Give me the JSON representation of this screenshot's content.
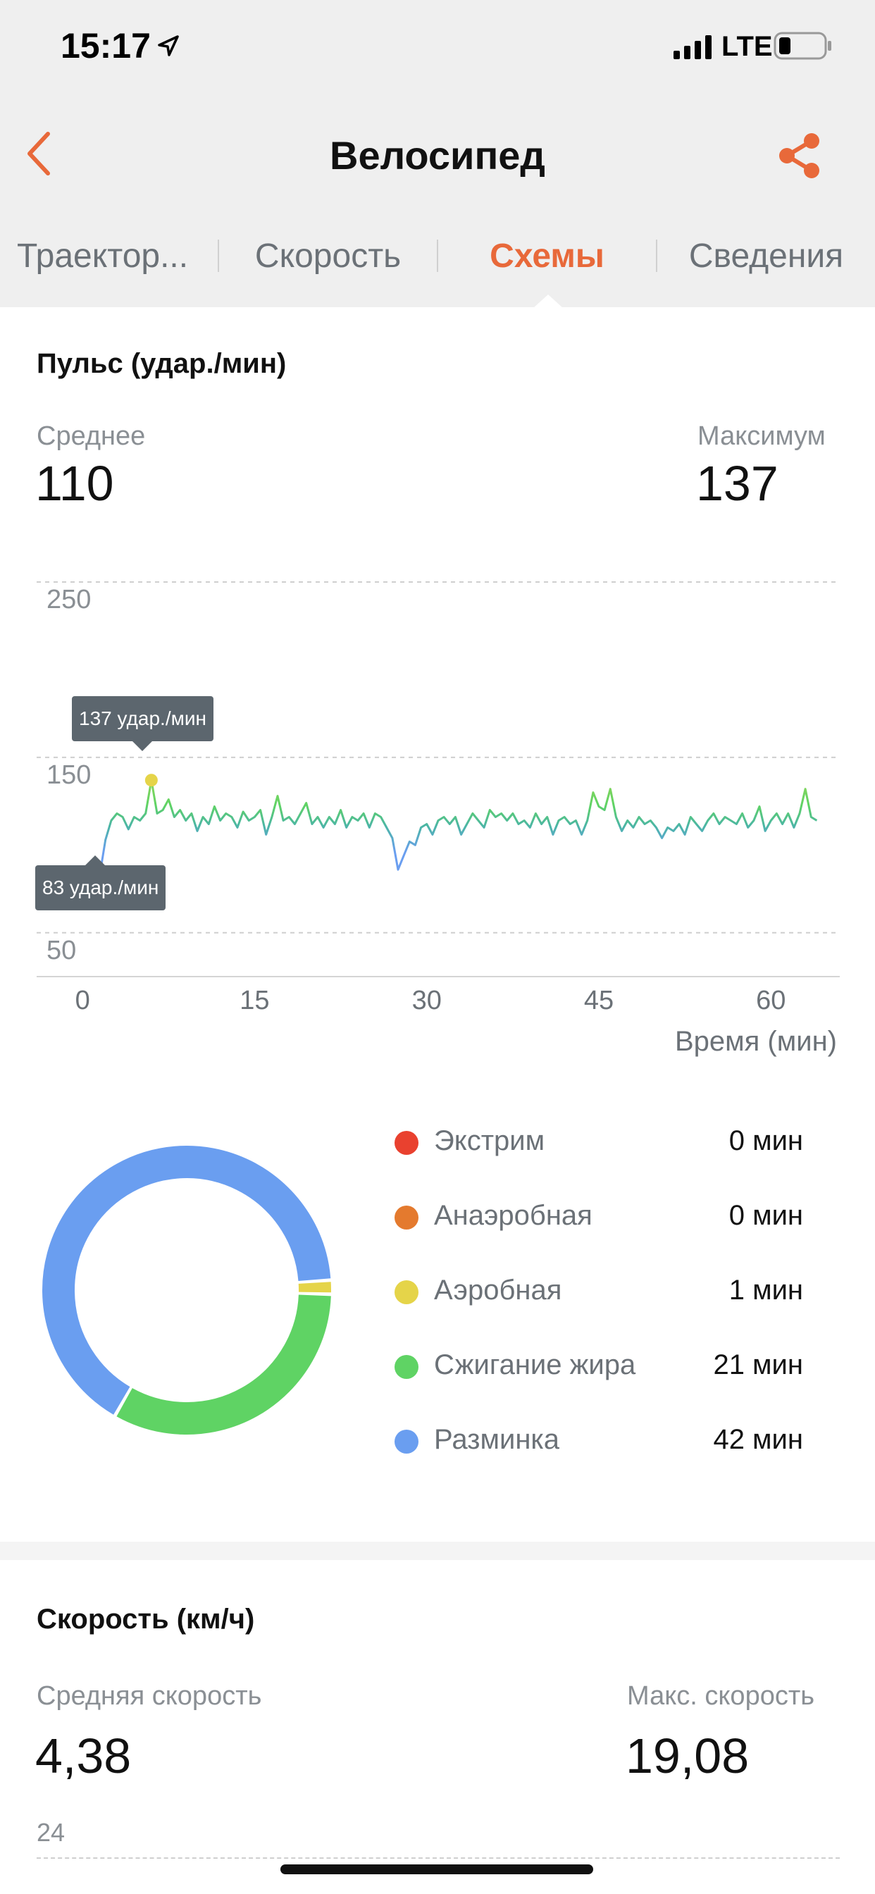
{
  "status_bar": {
    "time": "15:17",
    "network": "LTE"
  },
  "nav": {
    "title": "Велосипед"
  },
  "tabs": [
    {
      "label": "Траектор..."
    },
    {
      "label": "Скорость"
    },
    {
      "label": "Схемы"
    },
    {
      "label": "Сведения"
    }
  ],
  "heart_rate": {
    "title": "Пульс (удар./мин)",
    "avg_label": "Среднее",
    "avg_value": "110",
    "max_label": "Максимум",
    "max_value": "137",
    "max_tooltip": "137 удар./мин",
    "min_tooltip": "83 удар./мин",
    "x_axis_label": "Время (мин)"
  },
  "chart_data": {
    "type": "line",
    "title": "Пульс (удар./мин)",
    "xlabel": "Время (мин)",
    "ylabel": "",
    "y_ticks": [
      50,
      150,
      250
    ],
    "x_ticks": [
      0,
      15,
      30,
      45,
      60
    ],
    "xlim": [
      -4,
      66
    ],
    "ylim": [
      25,
      250
    ],
    "grid": true,
    "series": [
      {
        "points": [
          [
            1.5,
            83
          ],
          [
            2.0,
            103
          ],
          [
            2.5,
            114
          ],
          [
            3.0,
            118
          ],
          [
            3.5,
            116
          ],
          [
            4.0,
            109
          ],
          [
            4.5,
            116
          ],
          [
            5.0,
            114
          ],
          [
            5.5,
            118
          ],
          [
            6.0,
            137
          ],
          [
            6.5,
            118
          ],
          [
            7.0,
            120
          ],
          [
            7.5,
            126
          ],
          [
            8.0,
            116
          ],
          [
            8.5,
            120
          ],
          [
            9.0,
            114
          ],
          [
            9.5,
            118
          ],
          [
            10.0,
            108
          ],
          [
            10.5,
            116
          ],
          [
            11.0,
            112
          ],
          [
            11.5,
            122
          ],
          [
            12.0,
            114
          ],
          [
            12.5,
            118
          ],
          [
            13.0,
            116
          ],
          [
            13.5,
            110
          ],
          [
            14.0,
            119
          ],
          [
            14.5,
            114
          ],
          [
            15.0,
            116
          ],
          [
            15.5,
            120
          ],
          [
            16.0,
            106
          ],
          [
            16.5,
            116
          ],
          [
            17.0,
            128
          ],
          [
            17.5,
            114
          ],
          [
            18.0,
            116
          ],
          [
            18.5,
            112
          ],
          [
            19.0,
            118
          ],
          [
            19.5,
            124
          ],
          [
            20.0,
            112
          ],
          [
            20.5,
            116
          ],
          [
            21.0,
            110
          ],
          [
            21.5,
            116
          ],
          [
            22.0,
            112
          ],
          [
            22.5,
            120
          ],
          [
            23.0,
            110
          ],
          [
            23.5,
            116
          ],
          [
            24.0,
            114
          ],
          [
            24.5,
            118
          ],
          [
            25.0,
            110
          ],
          [
            25.5,
            118
          ],
          [
            26.0,
            116
          ],
          [
            26.5,
            110
          ],
          [
            27.0,
            104
          ],
          [
            27.5,
            86
          ],
          [
            28.0,
            94
          ],
          [
            28.5,
            102
          ],
          [
            29.0,
            100
          ],
          [
            29.5,
            110
          ],
          [
            30.0,
            112
          ],
          [
            30.5,
            106
          ],
          [
            31.0,
            114
          ],
          [
            31.5,
            116
          ],
          [
            32.0,
            112
          ],
          [
            32.5,
            116
          ],
          [
            33.0,
            106
          ],
          [
            33.5,
            112
          ],
          [
            34.0,
            118
          ],
          [
            34.5,
            114
          ],
          [
            35.0,
            110
          ],
          [
            35.5,
            120
          ],
          [
            36.0,
            116
          ],
          [
            36.5,
            118
          ],
          [
            37.0,
            114
          ],
          [
            37.5,
            118
          ],
          [
            38.0,
            112
          ],
          [
            38.5,
            114
          ],
          [
            39.0,
            110
          ],
          [
            39.5,
            118
          ],
          [
            40.0,
            112
          ],
          [
            40.5,
            116
          ],
          [
            41.0,
            106
          ],
          [
            41.5,
            114
          ],
          [
            42.0,
            116
          ],
          [
            42.5,
            112
          ],
          [
            43.0,
            114
          ],
          [
            43.5,
            106
          ],
          [
            44.0,
            114
          ],
          [
            44.5,
            130
          ],
          [
            45.0,
            122
          ],
          [
            45.5,
            120
          ],
          [
            46.0,
            132
          ],
          [
            46.5,
            116
          ],
          [
            47.0,
            108
          ],
          [
            47.5,
            114
          ],
          [
            48.0,
            110
          ],
          [
            48.5,
            116
          ],
          [
            49.0,
            112
          ],
          [
            49.5,
            114
          ],
          [
            50.0,
            110
          ],
          [
            50.5,
            104
          ],
          [
            51.0,
            110
          ],
          [
            51.5,
            108
          ],
          [
            52.0,
            112
          ],
          [
            52.5,
            106
          ],
          [
            53.0,
            116
          ],
          [
            53.5,
            112
          ],
          [
            54.0,
            108
          ],
          [
            54.5,
            114
          ],
          [
            55.0,
            118
          ],
          [
            55.5,
            112
          ],
          [
            56.0,
            116
          ],
          [
            56.5,
            114
          ],
          [
            57.0,
            112
          ],
          [
            57.5,
            118
          ],
          [
            58.0,
            110
          ],
          [
            58.5,
            114
          ],
          [
            59.0,
            122
          ],
          [
            59.5,
            108
          ],
          [
            60.0,
            114
          ],
          [
            60.5,
            118
          ],
          [
            61.0,
            112
          ],
          [
            61.5,
            118
          ],
          [
            62.0,
            110
          ],
          [
            62.5,
            118
          ],
          [
            63.0,
            132
          ],
          [
            63.5,
            116
          ],
          [
            64.0,
            114
          ]
        ]
      }
    ],
    "annotations": [
      {
        "x": 6.0,
        "y": 137,
        "text": "137 удар./мин"
      },
      {
        "x": 1.5,
        "y": 83,
        "text": "83 удар./мин"
      }
    ]
  },
  "zones": [
    {
      "label": "Экстрим",
      "value": "0 мин",
      "minutes": 0,
      "color": "#e9412f"
    },
    {
      "label": "Анаэробная",
      "value": "0 мин",
      "minutes": 0,
      "color": "#e47a2e"
    },
    {
      "label": "Аэробная",
      "value": "1 мин",
      "minutes": 1,
      "color": "#e5d449"
    },
    {
      "label": "Сжигание жира",
      "value": "21 мин",
      "minutes": 21,
      "color": "#5fd364"
    },
    {
      "label": "Разминка",
      "value": "42 мин",
      "minutes": 42,
      "color": "#6a9ef0"
    }
  ],
  "speed": {
    "title": "Скорость (км/ч)",
    "avg_label": "Средняя скорость",
    "avg_value": "4,38",
    "max_label": "Макс. скорость",
    "max_value": "19,08",
    "first_tick": "24"
  },
  "colors": {
    "accent": "#e8693a",
    "tooltip_bg": "#5c666e",
    "avg_dot": "#c8cdd1"
  }
}
